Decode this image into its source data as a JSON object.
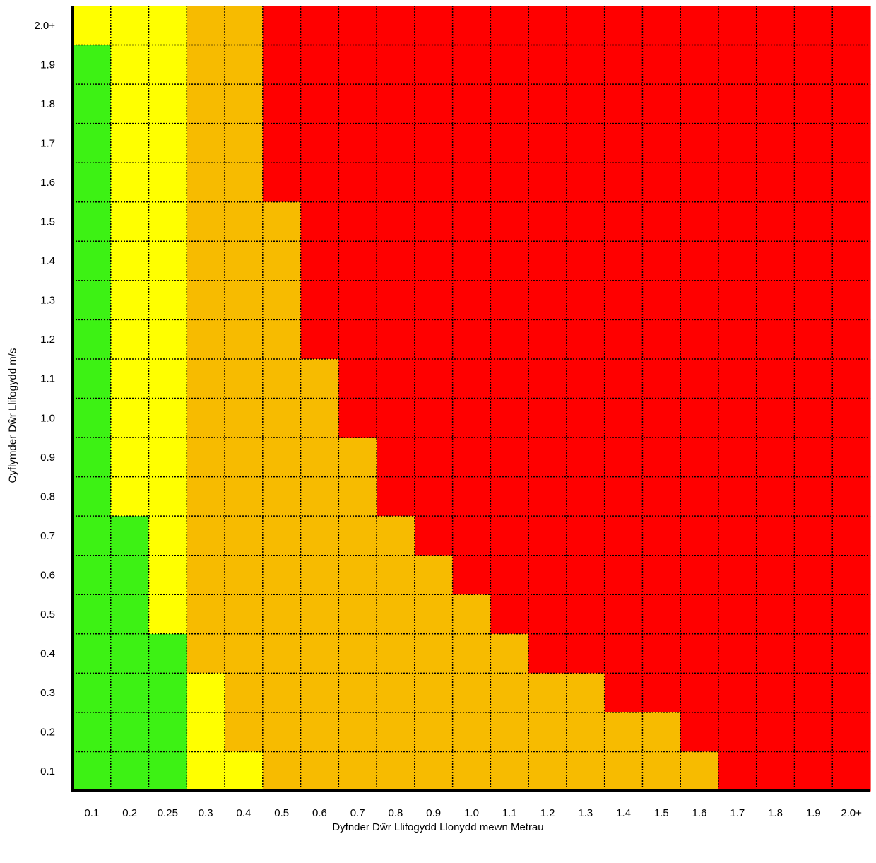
{
  "chart_data": {
    "type": "heatmap",
    "xlabel": "Dyfnder Dŵr Llifogydd Llonydd mewn Metrau",
    "ylabel": "Cyflymder Dŵr Llifogydd  m/s",
    "x_categories": [
      "0.1",
      "0.2",
      "0.25",
      "0.3",
      "0.4",
      "0.5",
      "0.6",
      "0.7",
      "0.8",
      "0.9",
      "1.0",
      "1.1",
      "1.2",
      "1.3",
      "1.4",
      "1.5",
      "1.6",
      "1.7",
      "1.8",
      "1.9",
      "2.0+"
    ],
    "y_categories": [
      "0.1",
      "0.2",
      "0.3",
      "0.4",
      "0.5",
      "0.6",
      "0.7",
      "0.8",
      "0.9",
      "1.0",
      "1.1",
      "1.2",
      "1.3",
      "1.4",
      "1.5",
      "1.6",
      "1.7",
      "1.8",
      "1.9",
      "2.0+"
    ],
    "grid": true,
    "colors": {
      "G": "#3df214",
      "Y": "#ffff00",
      "O": "#f7bb00",
      "R": "#ff0000"
    },
    "rows_top_to_bottom": [
      "YYYOORRRRRRRRRRRRRRRR",
      "GYYOORRRRRRRRRRRRRRRR",
      "GYYOORRRRRRRRRRRRRRRR",
      "GYYOORRRRRRRRRRRRRRRR",
      "GYYOORRRRRRRRRRRRRRRR",
      "GYYOOORRRRRRRRRRRRRRR",
      "GYYOOORRRRRRRRRRRRRRR",
      "GYYOOORRRRRRRRRRRRRRR",
      "GYYOOORRRRRRRRRRRRRRR",
      "GYYOOOORRRRRRRRRRRRRR",
      "GYYOOOORRRRRRRRRRRRRR",
      "GYYOOOOORRRRRRRRRRRRR",
      "GYYOOOOORRRRRRRRRRRRR",
      "GGYOOOOOORRRRRRRRRRRR",
      "GGYOOOOOOORRRRRRRRRRR",
      "GGYOOOOOOOORRRRRRRRRR",
      "GGGOOOOOOOOORRRRRRRRR",
      "GGGYOOOOOOOOOORRRRRRR",
      "GGGYOOOOOOOOOOOORRRRR",
      "GGGYYOOOOOOOOOOOORRRR"
    ]
  }
}
